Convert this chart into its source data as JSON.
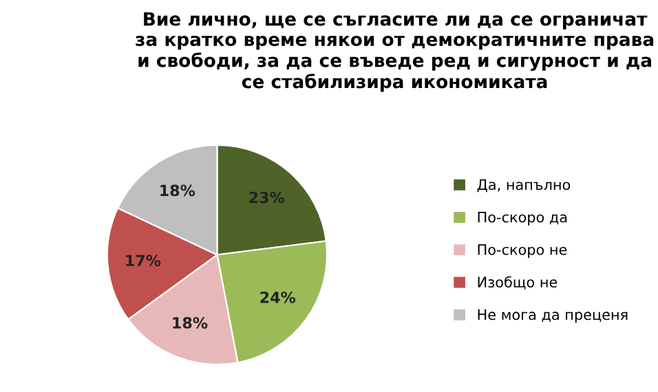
{
  "chart_data": {
    "type": "pie",
    "title": "Вие лично, ще се съгласите ли да се ограничат за кратко време някои от демократичните права и свободи, за да се въведе ред и сигурност и да се стабилизира икономиката",
    "categories": [
      "Да, напълно",
      "По-скоро да",
      "По-скоро не",
      "Изобщо не",
      "Не мога да преценя"
    ],
    "values": [
      23,
      24,
      18,
      17,
      18
    ],
    "colors": [
      "#4f6228",
      "#9bbb59",
      "#e6b9b8",
      "#c0504d",
      "#bfbfbf"
    ],
    "value_labels": [
      "23%",
      "24%",
      "18%",
      "17%",
      "18%"
    ],
    "legend": "right"
  }
}
